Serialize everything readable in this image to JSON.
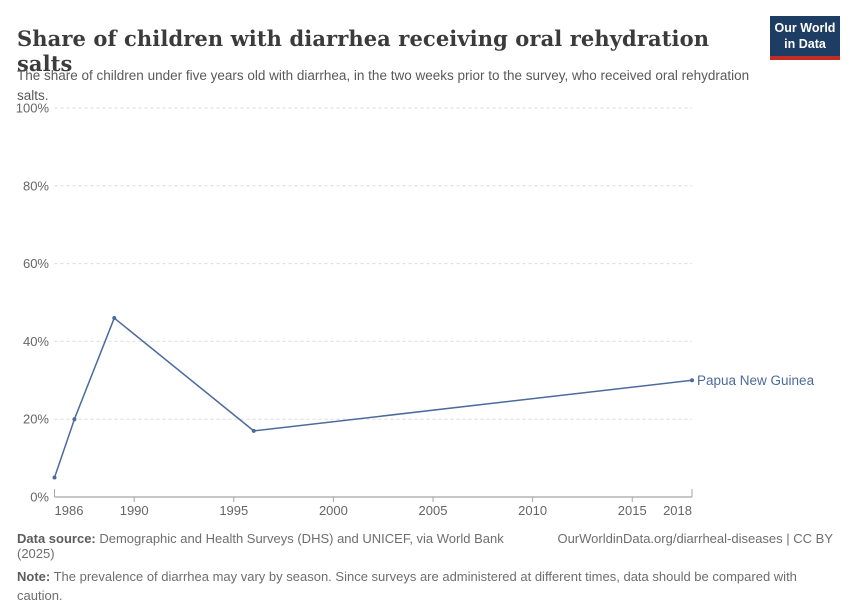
{
  "header": {
    "title": "Share of children with diarrhea receiving oral rehydration salts",
    "subtitle": "The share of children under five years old with diarrhea, in the two weeks prior to the survey, who received oral rehydration salts.",
    "logo": {
      "line1": "Our World",
      "line2": "in Data",
      "bg_color": "#1d3d63",
      "accent_color": "#c42b24"
    }
  },
  "chart_data": {
    "type": "line",
    "title": "Share of children with diarrhea receiving oral rehydration salts",
    "series": [
      {
        "name": "Papua New Guinea",
        "x": [
          1986,
          1987,
          1989,
          1996,
          2018
        ],
        "values": [
          5,
          20,
          46,
          17,
          30
        ],
        "color": "#4C6A9C"
      }
    ],
    "x_axis": {
      "range": [
        1986,
        2018
      ],
      "ticks": [
        1986,
        1990,
        1995,
        2000,
        2005,
        2010,
        2015,
        2018
      ],
      "labels": [
        "1986",
        "1990",
        "1995",
        "2000",
        "2005",
        "2010",
        "2015",
        "2018"
      ]
    },
    "y_axis": {
      "range": [
        0,
        100
      ],
      "ticks": [
        0,
        20,
        40,
        60,
        80,
        100
      ],
      "labels": [
        "0%",
        "20%",
        "40%",
        "60%",
        "80%",
        "100%"
      ],
      "unit": "percent",
      "grid": "dashed"
    },
    "legend_position": "end-of-line-label"
  },
  "footer": {
    "data_source_label": "Data source:",
    "data_source_text": " Demographic and Health Surveys (DHS) and UNICEF, via World Bank (2025)",
    "link_text": "OurWorldinData.org/diarrheal-diseases | CC BY",
    "note_label": "Note:",
    "note_text": " The prevalence of diarrhea may vary by season. Since surveys are administered at different times, data should be compared with caution."
  }
}
